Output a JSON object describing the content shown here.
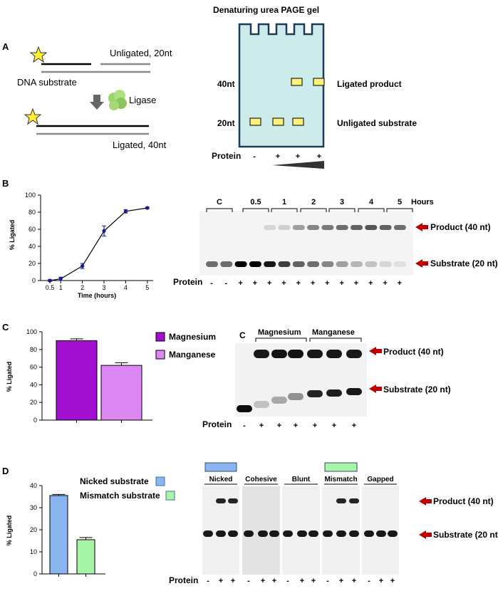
{
  "panel_a": {
    "letter": "A",
    "unligated_label": "Unligated, 20nt",
    "substrate_label": "DNA substrate",
    "ligase_label": "Ligase",
    "ligated_label": "Ligated, 40nt",
    "gel_title": "Denaturing urea PAGE gel",
    "band_40": "40nt",
    "band_20": "20nt",
    "product_label": "Ligated product",
    "substrate_band_label": "Unligated substrate",
    "protein_label": "Protein",
    "lanes": [
      "-",
      "+",
      "+",
      "+"
    ],
    "colors": {
      "gel": "#cdebeb",
      "gel_border": "#1e3c55",
      "band": "#fff176",
      "star": "#ffee33"
    }
  },
  "panel_b": {
    "letter": "B",
    "hours_label": "Hours",
    "groups": [
      "C",
      "0.5",
      "1",
      "2",
      "3",
      "4",
      "5"
    ],
    "product_label": "Product (40 nt)",
    "substrate_label": "Substrate (20 nt)",
    "protein_label": "Protein",
    "lanes": [
      "-",
      "-",
      "+",
      "+",
      "+",
      "+",
      "+",
      "+",
      "+",
      "+",
      "+",
      "+",
      "+",
      "+"
    ],
    "arrow_color": "#c00000"
  },
  "panel_c": {
    "letter": "C",
    "gel_c_label": "C",
    "group_magnesium": "Magnesium",
    "group_manganese": "Manganese",
    "product_label": "Product (40 nt)",
    "substrate_label": "Substrate (20 nt)",
    "protein_label": "Protein",
    "lanes": [
      "-",
      "+",
      "+",
      "+",
      "+",
      "+",
      "+"
    ]
  },
  "panel_d": {
    "letter": "D",
    "legend_nicked": "Nicked substrate",
    "legend_mismatch": "Mismatch substrate",
    "gels": [
      "Nicked",
      "Cohesive",
      "Blunt",
      "Mismatch",
      "Gapped"
    ],
    "product_label": "Product (40 nt)",
    "substrate_label": "Substrate (20 nt)",
    "protein_label": "Protein",
    "lanes": [
      "-",
      "+",
      "+",
      "-",
      "+",
      "+",
      "-",
      "+",
      "+",
      "-",
      "+",
      "+",
      "-",
      "+",
      "+"
    ]
  },
  "chart_data": [
    {
      "type": "line",
      "x": [
        0.5,
        1,
        2,
        3,
        4,
        5
      ],
      "y": [
        0,
        2,
        17,
        58,
        81,
        85
      ],
      "error": [
        1,
        2,
        3,
        6,
        2,
        1
      ],
      "xlabel": "Time (hours)",
      "ylabel": "% Ligated",
      "yticks": [
        0,
        20,
        40,
        60,
        80,
        100
      ],
      "ylim": [
        0,
        100
      ],
      "color": "#1a1a8c"
    },
    {
      "type": "bar",
      "categories": [
        "Magnesium",
        "Manganese"
      ],
      "values": [
        90,
        62
      ],
      "error": [
        2,
        3
      ],
      "ylabel": "% Ligated",
      "yticks": [
        0,
        20,
        40,
        60,
        80,
        100
      ],
      "ylim": [
        0,
        100
      ],
      "colors": [
        "#a20fd1",
        "#dd88f2"
      ],
      "legend": [
        "Magnesium",
        "Manganese"
      ]
    },
    {
      "type": "bar",
      "categories": [
        "Nicked substrate",
        "Mismatch substrate"
      ],
      "values": [
        35.5,
        15.5
      ],
      "error": [
        0.5,
        1
      ],
      "ylabel": "% Ligated",
      "yticks": [
        0,
        10,
        20,
        30,
        40
      ],
      "ylim": [
        0,
        40
      ],
      "colors": [
        "#8ab4f0",
        "#a6f4a6"
      ],
      "legend": [
        "Nicked substrate",
        "Mismatch substrate"
      ]
    }
  ]
}
